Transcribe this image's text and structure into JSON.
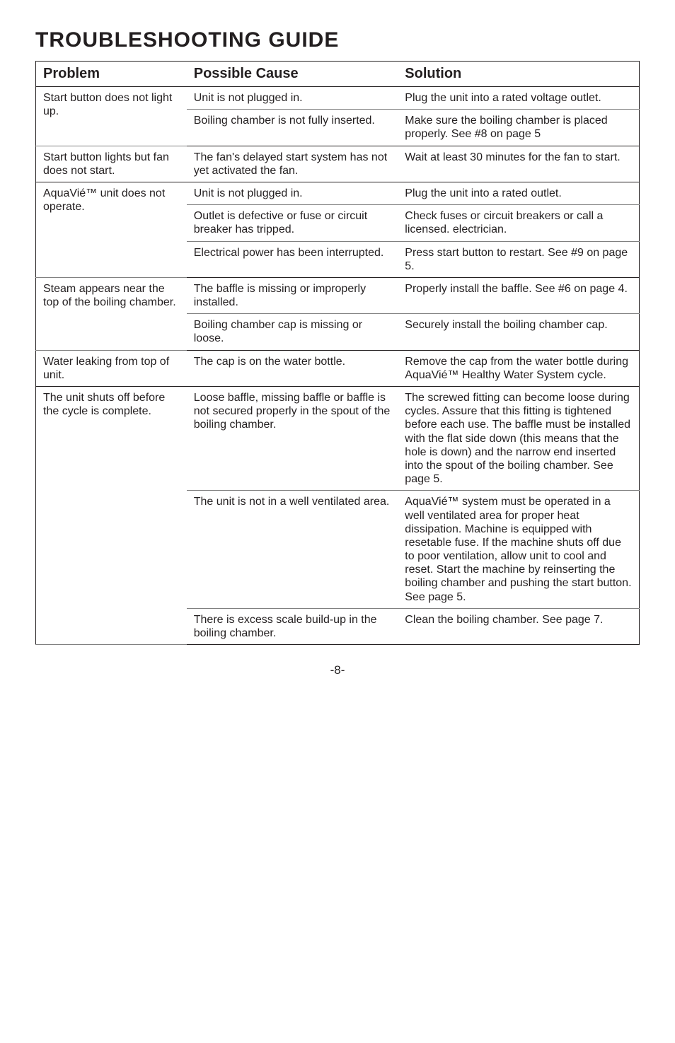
{
  "heading": "TROUBLESHOOTING GUIDE",
  "headers": {
    "c1": "Problem",
    "c2": "Possible Cause",
    "c3": "Solution"
  },
  "rows": [
    {
      "c1": "Start button does not light up.",
      "c2": "Unit is not plugged in.",
      "c3": "Plug the unit into a rated voltage outlet.",
      "sep": "thin",
      "span1": 2
    },
    {
      "c2": "Boiling chamber is not fully inserted.",
      "c3": "Make sure the boiling chamber is placed properly. See #8 on page 5",
      "sep": "full"
    },
    {
      "c1": "Start button lights but fan does not start.",
      "c2": "The fan's delayed start system has not yet activated the fan.",
      "c3": "Wait at least 30 minutes for the fan to start.",
      "sep": "full"
    },
    {
      "c1": "AquaVié™ unit does not operate.",
      "c2": "Unit is not plugged in.",
      "c3": "Plug the unit into a rated outlet.",
      "sep": "thin",
      "span1": 3
    },
    {
      "c2": "Outlet is defective or fuse or circuit breaker has tripped.",
      "c3": "Check fuses or circuit breakers or call a licensed. electrician.",
      "sep": "thin"
    },
    {
      "c2": "Electrical power has been interrupted.",
      "c3": "Press start button to restart. See #9 on page 5.",
      "sep": "full"
    },
    {
      "c1": "Steam appears near the top of the boiling chamber.",
      "c2": "The baffle is missing or improperly installed.",
      "c3": "Properly install the baffle. See #6 on page 4.",
      "sep": "thin",
      "span1": 2
    },
    {
      "c2": "Boiling chamber cap is missing or loose.",
      "c3": "Securely install the boiling chamber cap.",
      "sep": "full"
    },
    {
      "c1": "Water leaking from top of unit.",
      "c2": "The cap is on the water bottle.",
      "c3": "Remove the cap from the water bottle during AquaVié™ Healthy Water System cycle.",
      "sep": "full"
    },
    {
      "c1": "The unit shuts off before the cycle is complete.",
      "c2": "Loose baffle, missing baffle or baffle is not secured properly in the spout of the boiling chamber.",
      "c3": "The screwed fitting can become loose during cycles. Assure that this fitting is tightened before each use. The baffle must be installed with the flat side down (this means that the hole is down) and the narrow end inserted into the spout of the boiling chamber. See page 5.",
      "sep": "thin",
      "span1": 3
    },
    {
      "c2": "The unit is not in a well ventilated area.",
      "c3": "AquaVié™ system must be operated in a well ventilated area for proper heat dissipation. Machine is equipped with resetable fuse. If the machine shuts off due to poor ventilation, allow unit to cool and reset. Start the machine by reinserting the boiling chamber and pushing the start button. See page 5.",
      "sep": "thin"
    },
    {
      "c2": "There is excess scale build-up in the boiling chamber.",
      "c3": "Clean the boiling chamber. See page 7.",
      "sep": "none"
    }
  ],
  "pagenum": "-8-"
}
